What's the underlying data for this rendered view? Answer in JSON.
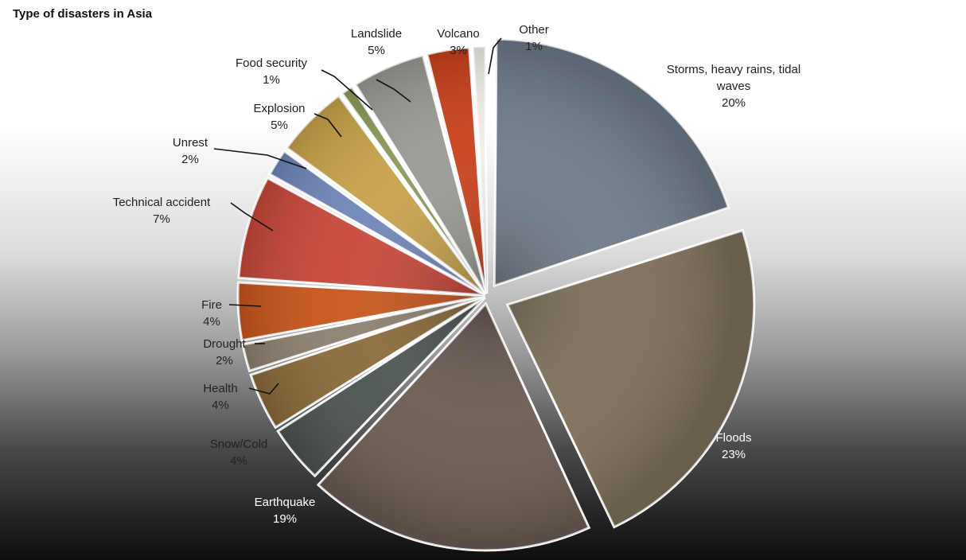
{
  "chart_data": {
    "type": "pie",
    "title": "Type of disasters in Asia",
    "slices": [
      {
        "label": "Storms, heavy rains, tidal waves",
        "label_lines": [
          "Storms, heavy rains, tidal",
          "waves"
        ],
        "value": 20,
        "value_label": "20%",
        "color": "#6f7a88"
      },
      {
        "label": "Floods",
        "label_lines": [
          "Floods"
        ],
        "value": 23,
        "value_label": "23%",
        "color": "#7d6e5a"
      },
      {
        "label": "Earthquake",
        "label_lines": [
          "Earthquake"
        ],
        "value": 19,
        "value_label": "19%",
        "color": "#6a5a52"
      },
      {
        "label": "Snow/Cold",
        "label_lines": [
          "Snow/Cold"
        ],
        "value": 4,
        "value_label": "4%",
        "color": "#4b5350"
      },
      {
        "label": "Health",
        "label_lines": [
          "Health"
        ],
        "value": 4,
        "value_label": "4%",
        "color": "#8a6a3a"
      },
      {
        "label": "Drought",
        "label_lines": [
          "Drought"
        ],
        "value": 2,
        "value_label": "2%",
        "color": "#8c8070"
      },
      {
        "label": "Fire",
        "label_lines": [
          "Fire"
        ],
        "value": 4,
        "value_label": "4%",
        "color": "#c9551c"
      },
      {
        "label": "Technical accident",
        "label_lines": [
          "Technical accident"
        ],
        "value": 7,
        "value_label": "7%",
        "color": "#c8473a"
      },
      {
        "label": "Unrest",
        "label_lines": [
          "Unrest"
        ],
        "value": 2,
        "value_label": "2%",
        "color": "#6f86b8"
      },
      {
        "label": "Explosion",
        "label_lines": [
          "Explosion"
        ],
        "value": 5,
        "value_label": "5%",
        "color": "#c8a24a"
      },
      {
        "label": "Food security",
        "label_lines": [
          "Food security"
        ],
        "value": 1,
        "value_label": "1%",
        "color": "#8a9a5a"
      },
      {
        "label": "Landslide",
        "label_lines": [
          "Landslide"
        ],
        "value": 5,
        "value_label": "5%",
        "color": "#9a9a94"
      },
      {
        "label": "Volcano",
        "label_lines": [
          "Volcano"
        ],
        "value": 3,
        "value_label": "3%",
        "color": "#c9401a"
      },
      {
        "label": "Other",
        "label_lines": [
          "Other"
        ],
        "value": 1,
        "value_label": "1%",
        "color": "#f3efe8"
      }
    ]
  }
}
